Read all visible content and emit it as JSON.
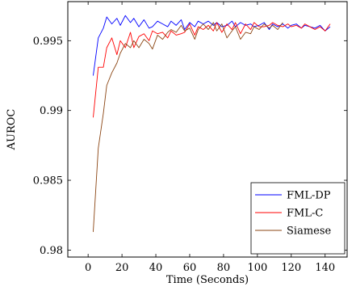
{
  "chart_data": {
    "type": "line",
    "title": "",
    "xlabel": "Time (Seconds)",
    "ylabel": "AUROC",
    "xlim": [
      -12,
      153
    ],
    "ylim": [
      0.9795,
      0.9978
    ],
    "x_ticks": [
      0,
      20,
      40,
      60,
      80,
      100,
      120,
      140
    ],
    "x_tick_labels": [
      "0",
      "20",
      "40",
      "60",
      "80",
      "100",
      "120",
      "140"
    ],
    "y_ticks": [
      0.98,
      0.985,
      0.99,
      0.995
    ],
    "y_tick_labels": [
      "0.98",
      "0.985",
      "0.99",
      "0.995"
    ],
    "grid": false,
    "legend_position": "bottom-right",
    "series": [
      {
        "name": "FML-DP",
        "color": "#0000ff",
        "x": [
          3,
          6,
          9,
          11,
          14,
          17,
          19,
          22,
          25,
          27,
          30,
          33,
          36,
          38,
          41,
          44,
          47,
          49,
          52,
          55,
          57,
          60,
          63,
          65,
          68,
          71,
          74,
          76,
          79,
          82,
          85,
          87,
          90,
          93,
          96,
          98,
          101,
          104,
          107,
          109,
          112,
          115,
          118,
          120,
          123,
          126,
          128,
          131,
          134,
          137,
          140,
          143
        ],
        "y": [
          0.9925,
          0.9952,
          0.9959,
          0.9967,
          0.9962,
          0.9966,
          0.9961,
          0.9968,
          0.9963,
          0.9966,
          0.996,
          0.9965,
          0.9959,
          0.996,
          0.9964,
          0.9962,
          0.996,
          0.9964,
          0.9961,
          0.9965,
          0.9958,
          0.9963,
          0.996,
          0.9964,
          0.9962,
          0.9964,
          0.9961,
          0.9963,
          0.996,
          0.9961,
          0.9964,
          0.996,
          0.9963,
          0.9961,
          0.9962,
          0.996,
          0.9961,
          0.9963,
          0.9958,
          0.9962,
          0.996,
          0.9962,
          0.9959,
          0.9961,
          0.9962,
          0.9959,
          0.9961,
          0.996,
          0.9959,
          0.9961,
          0.9957,
          0.996
        ]
      },
      {
        "name": "FML-C",
        "color": "#ff0000",
        "x": [
          3,
          6,
          9,
          11,
          14,
          17,
          19,
          22,
          25,
          27,
          30,
          33,
          36,
          38,
          41,
          44,
          47,
          49,
          52,
          55,
          57,
          60,
          63,
          65,
          68,
          71,
          74,
          76,
          79,
          82,
          85,
          87,
          90,
          93,
          96,
          98,
          101,
          104,
          107,
          109,
          112,
          115,
          118,
          120,
          123,
          126,
          128,
          131,
          134,
          137,
          140,
          143
        ],
        "y": [
          0.9895,
          0.9931,
          0.9931,
          0.9945,
          0.9952,
          0.994,
          0.995,
          0.9945,
          0.9956,
          0.9945,
          0.9953,
          0.9955,
          0.995,
          0.9957,
          0.9955,
          0.9956,
          0.9952,
          0.9957,
          0.9954,
          0.9955,
          0.9956,
          0.9962,
          0.9954,
          0.996,
          0.9958,
          0.9961,
          0.9957,
          0.9963,
          0.9956,
          0.9962,
          0.9958,
          0.9963,
          0.9955,
          0.9962,
          0.9958,
          0.9963,
          0.996,
          0.996,
          0.9961,
          0.9963,
          0.9961,
          0.996,
          0.9962,
          0.996,
          0.9961,
          0.9959,
          0.9962,
          0.996,
          0.9958,
          0.996,
          0.9957,
          0.9962
        ]
      },
      {
        "name": "Siamese",
        "color": "#8b4513",
        "x": [
          3,
          6,
          9,
          11,
          14,
          17,
          19,
          22,
          25,
          27,
          30,
          33,
          36,
          38,
          41,
          44,
          47,
          49,
          52,
          55,
          57,
          60,
          63,
          65,
          68,
          71,
          74,
          76,
          79,
          82,
          85,
          87,
          90,
          93,
          96,
          98,
          101,
          104,
          107,
          109,
          112,
          115
        ],
        "y": [
          0.9813,
          0.9873,
          0.9898,
          0.9918,
          0.9927,
          0.9934,
          0.9941,
          0.9948,
          0.9945,
          0.995,
          0.9945,
          0.9951,
          0.9948,
          0.9944,
          0.9954,
          0.9951,
          0.9956,
          0.9958,
          0.9956,
          0.9961,
          0.9957,
          0.9959,
          0.9951,
          0.9958,
          0.9962,
          0.9958,
          0.9963,
          0.9957,
          0.9962,
          0.9952,
          0.9957,
          0.996,
          0.9951,
          0.9956,
          0.9955,
          0.996,
          0.9958,
          0.9962,
          0.9959,
          0.9961,
          0.9958,
          0.9963
        ]
      }
    ]
  }
}
